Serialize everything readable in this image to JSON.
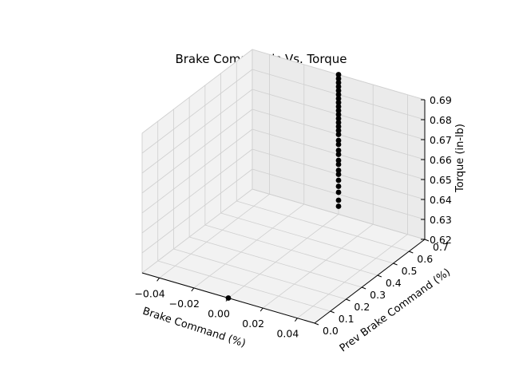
{
  "chart_data": {
    "type": "scatter",
    "projection": "3d",
    "title": "Brake Commands Vs. Torque",
    "xlabel": "Brake Command (%)",
    "ylabel": "Prev Brake Command (%)",
    "zlabel": "Torque (in-lb)",
    "xlim": [
      -0.05,
      0.05
    ],
    "ylim": [
      0.0,
      0.7
    ],
    "zlim": [
      0.62,
      0.69
    ],
    "xticks": [
      "−0.04",
      "−0.02",
      "0.00",
      "0.02",
      "0.04"
    ],
    "yticks": [
      "0.0",
      "0.1",
      "0.2",
      "0.3",
      "0.4",
      "0.5",
      "0.6",
      "0.7"
    ],
    "zticks": [
      "0.62",
      "0.63",
      "0.64",
      "0.65",
      "0.66",
      "0.67",
      "0.68",
      "0.69"
    ],
    "grid": true,
    "marker_color": "#000000",
    "points": [
      {
        "x": 0.0,
        "y": 0.0,
        "z": 0.62
      },
      {
        "x": 0.0,
        "y": 0.7,
        "z": 0.624
      },
      {
        "x": 0.0,
        "y": 0.7,
        "z": 0.627
      },
      {
        "x": 0.0,
        "y": 0.7,
        "z": 0.631
      },
      {
        "x": 0.0,
        "y": 0.7,
        "z": 0.634
      },
      {
        "x": 0.0,
        "y": 0.7,
        "z": 0.637
      },
      {
        "x": 0.0,
        "y": 0.7,
        "z": 0.64
      },
      {
        "x": 0.0,
        "y": 0.7,
        "z": 0.642
      },
      {
        "x": 0.0,
        "y": 0.7,
        "z": 0.645
      },
      {
        "x": 0.0,
        "y": 0.7,
        "z": 0.647
      },
      {
        "x": 0.0,
        "y": 0.7,
        "z": 0.65
      },
      {
        "x": 0.0,
        "y": 0.7,
        "z": 0.652
      },
      {
        "x": 0.0,
        "y": 0.7,
        "z": 0.655
      },
      {
        "x": 0.0,
        "y": 0.7,
        "z": 0.657
      },
      {
        "x": 0.0,
        "y": 0.7,
        "z": 0.66
      },
      {
        "x": 0.0,
        "y": 0.7,
        "z": 0.662
      },
      {
        "x": 0.0,
        "y": 0.7,
        "z": 0.664
      },
      {
        "x": 0.0,
        "y": 0.7,
        "z": 0.666
      },
      {
        "x": 0.0,
        "y": 0.7,
        "z": 0.668
      },
      {
        "x": 0.0,
        "y": 0.7,
        "z": 0.67
      },
      {
        "x": 0.0,
        "y": 0.7,
        "z": 0.672
      },
      {
        "x": 0.0,
        "y": 0.7,
        "z": 0.674
      },
      {
        "x": 0.0,
        "y": 0.7,
        "z": 0.676
      },
      {
        "x": 0.0,
        "y": 0.7,
        "z": 0.678
      },
      {
        "x": 0.0,
        "y": 0.7,
        "z": 0.68
      },
      {
        "x": 0.0,
        "y": 0.7,
        "z": 0.682
      },
      {
        "x": 0.0,
        "y": 0.7,
        "z": 0.684
      },
      {
        "x": 0.0,
        "y": 0.7,
        "z": 0.686
      },
      {
        "x": 0.0,
        "y": 0.7,
        "z": 0.688
      },
      {
        "x": 0.0,
        "y": 0.7,
        "z": 0.69
      }
    ]
  }
}
